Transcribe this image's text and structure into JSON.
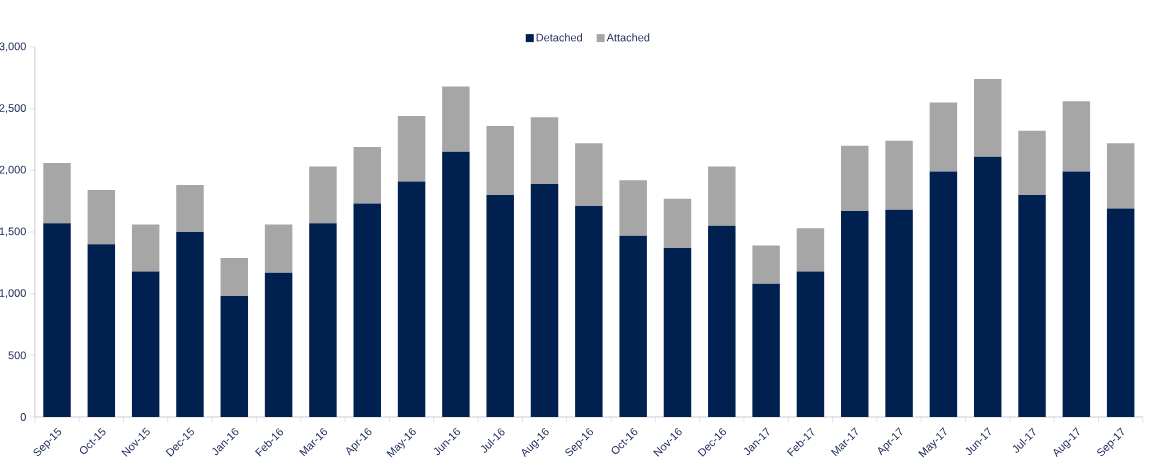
{
  "chart_data": {
    "type": "bar",
    "stacked": true,
    "legend": "top",
    "grid": false,
    "categories": [
      "Sep-15",
      "Oct-15",
      "Nov-15",
      "Dec-15",
      "Jan-16",
      "Feb-16",
      "Mar-16",
      "Apr-16",
      "May-16",
      "Jun-16",
      "Jul-16",
      "Aug-16",
      "Sep-16",
      "Oct-16",
      "Nov-16",
      "Dec-16",
      "Jan-17",
      "Feb-17",
      "Mar-17",
      "Apr-17",
      "May-17",
      "Jun-17",
      "Jul-17",
      "Aug-17",
      "Sep-17"
    ],
    "series": [
      {
        "name": "Detached",
        "color": "#002150",
        "values": [
          1570,
          1400,
          1180,
          1500,
          980,
          1170,
          1570,
          1730,
          1910,
          2150,
          1800,
          1890,
          1710,
          1470,
          1370,
          1550,
          1080,
          1180,
          1670,
          1680,
          1990,
          2110,
          1800,
          1990,
          1690
        ]
      },
      {
        "name": "Attached",
        "color": "#a6a6a6",
        "values": [
          490,
          440,
          380,
          380,
          310,
          390,
          460,
          460,
          530,
          530,
          560,
          540,
          510,
          450,
          400,
          480,
          310,
          350,
          530,
          560,
          560,
          630,
          520,
          570,
          530
        ]
      }
    ],
    "ylim": [
      0,
      3000
    ],
    "yticks": [
      0,
      500,
      {
        "value": 1000,
        "label": "1,000"
      },
      {
        "value": 1500,
        "label": "1,500"
      },
      {
        "value": 2000,
        "label": "2,000"
      },
      {
        "value": 2500,
        "label": "2,500"
      },
      {
        "value": 3000,
        "label": "3,000"
      }
    ]
  }
}
